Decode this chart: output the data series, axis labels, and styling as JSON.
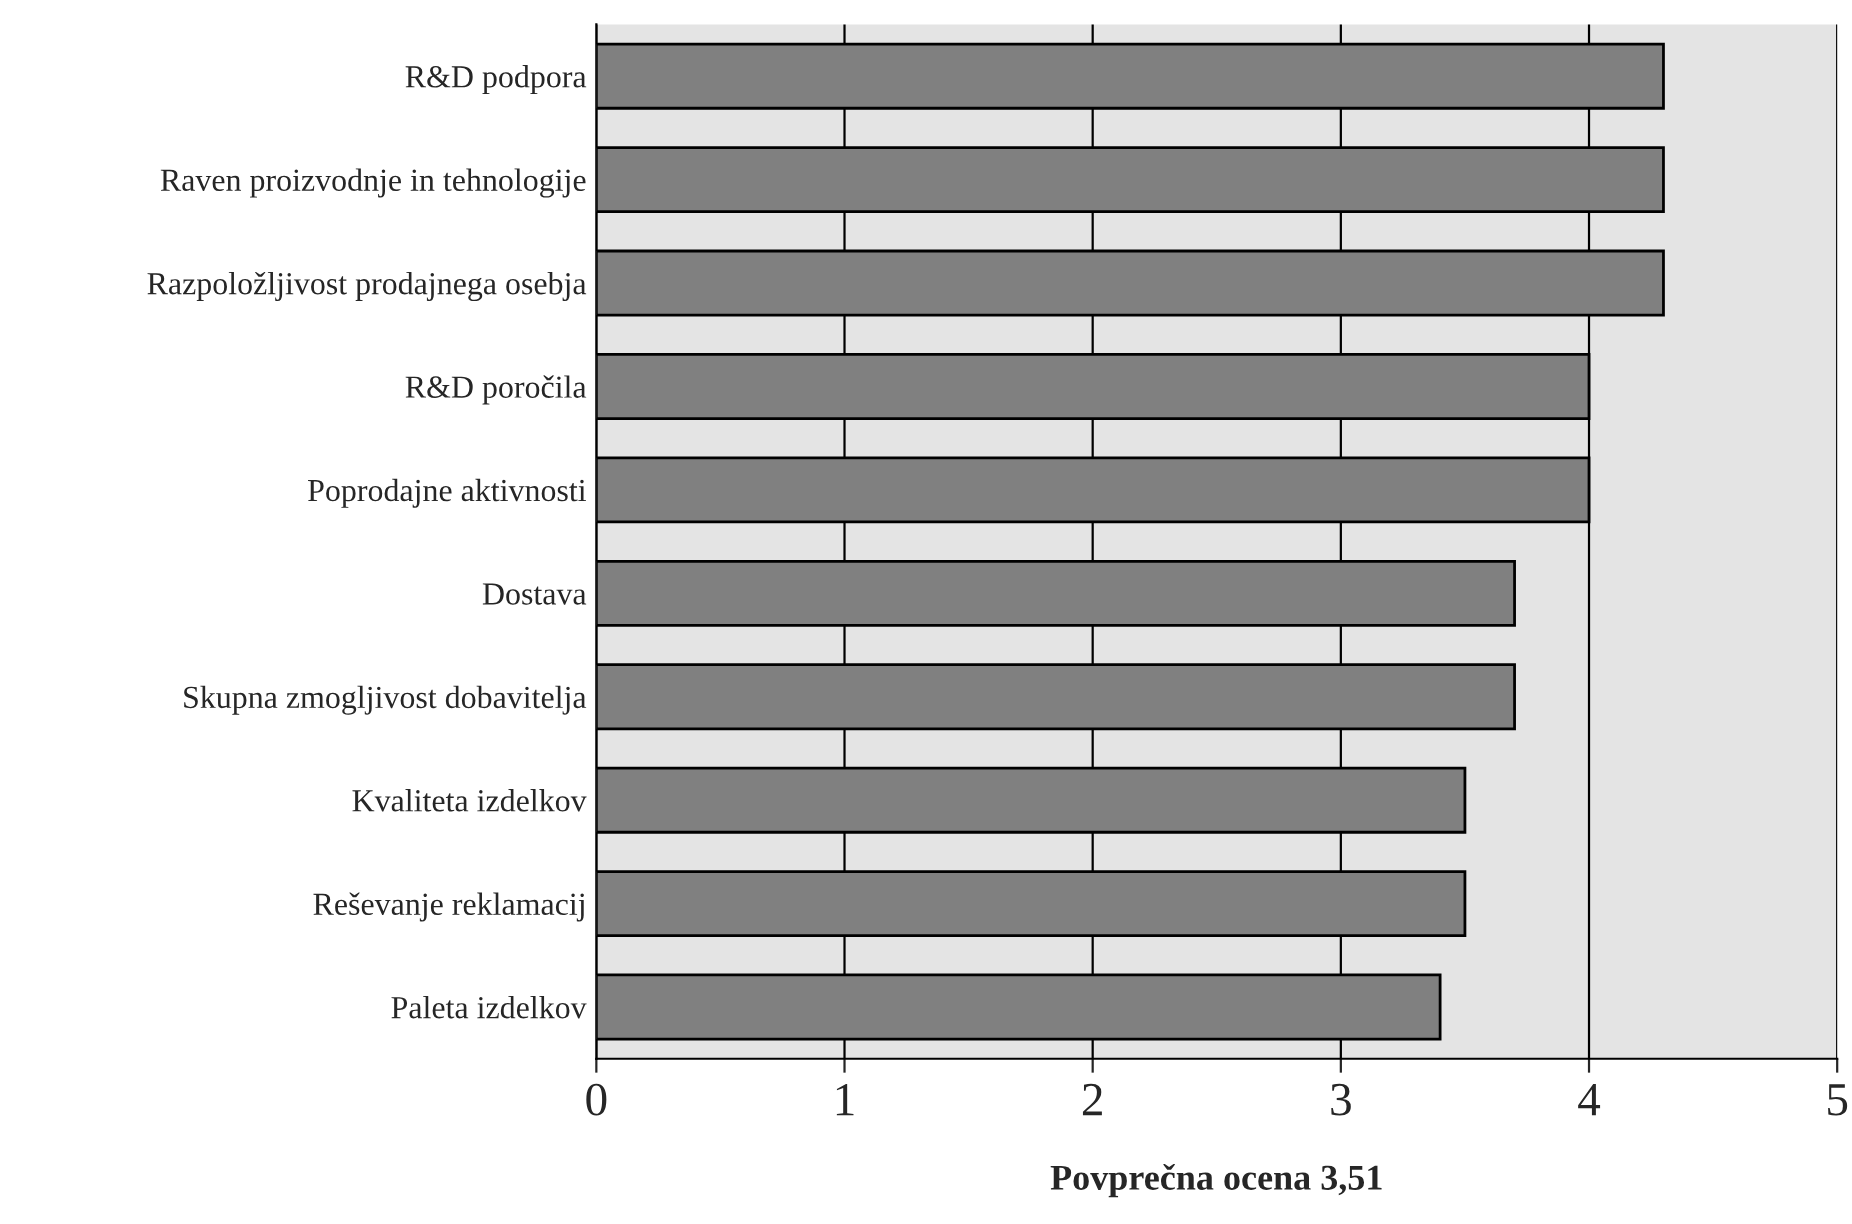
{
  "chart_data": {
    "type": "bar",
    "orientation": "horizontal",
    "xlabel": "Povprečna ocena 3,51",
    "categories": [
      "R&D podpora",
      "Raven proizvodnje in tehnologije",
      "Razpoložljivost prodajnega osebja",
      "R&D poročila",
      "Poprodajne aktivnosti",
      "Dostava",
      "Skupna zmogljivost dobavitelja",
      "Kvaliteta izdelkov",
      "Reševanje reklamacij",
      "Paleta izdelkov"
    ],
    "values": [
      4.3,
      4.3,
      4.3,
      4.0,
      4.0,
      3.7,
      3.7,
      3.5,
      3.5,
      3.4
    ],
    "color": "#808080",
    "xlim": [
      0,
      5
    ],
    "xticks": [
      0,
      1,
      2,
      3,
      4,
      5
    ],
    "grid": "x"
  }
}
